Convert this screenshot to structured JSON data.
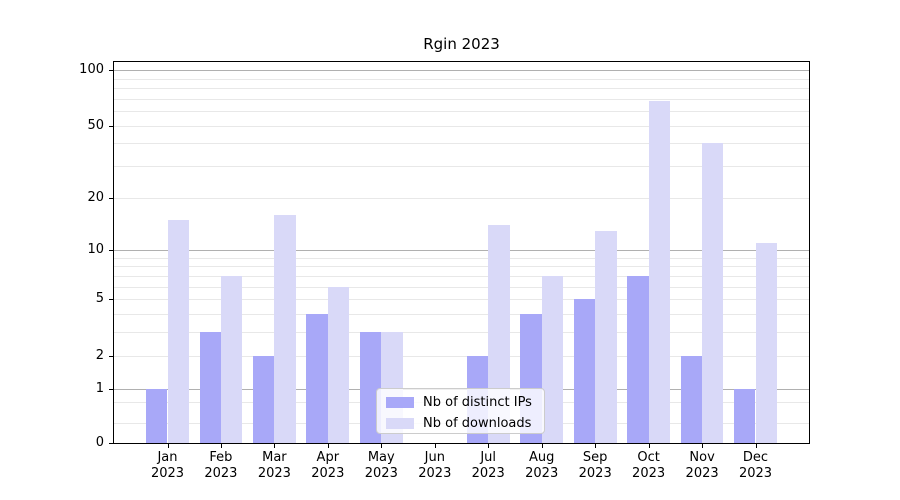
{
  "chart_data": {
    "type": "bar",
    "title": "Rgin 2023",
    "categories": [
      "Jan 2023",
      "Feb 2023",
      "Mar 2023",
      "Apr 2023",
      "May 2023",
      "Jun 2023",
      "Jul 2023",
      "Aug 2023",
      "Sep 2023",
      "Oct 2023",
      "Nov 2023",
      "Dec 2023"
    ],
    "series": [
      {
        "name": "Nb of distinct IPs",
        "color": "#a8a8f8",
        "values": [
          1,
          3,
          2,
          4,
          3,
          0,
          2,
          4,
          5,
          7,
          2,
          1
        ]
      },
      {
        "name": "Nb of downloads",
        "color": "#d9d9f8",
        "values": [
          15,
          7,
          16,
          6,
          3,
          0,
          14,
          7,
          13,
          68,
          40,
          11
        ]
      }
    ],
    "y_axis": {
      "scale": "log1p",
      "tick_values": [
        0,
        1,
        2,
        5,
        10,
        20,
        50,
        100
      ],
      "tick_labels": [
        "0",
        "1",
        "2",
        "5",
        "10",
        "20",
        "50",
        "100"
      ],
      "range": [
        0,
        112
      ],
      "major_gridlines": [
        1,
        10,
        100
      ],
      "minor_gridlines": [
        0.3,
        0.7,
        2,
        3,
        4,
        5,
        6,
        7,
        8,
        9,
        20,
        30,
        40,
        50,
        60,
        70,
        80,
        90
      ]
    },
    "grid": "horizontal",
    "legend_position": "bottom-center"
  },
  "colors": {
    "major_grid": "#b0b0b0",
    "minor_grid": "#e8e8e8",
    "axis": "#000000",
    "text": "#000000"
  }
}
